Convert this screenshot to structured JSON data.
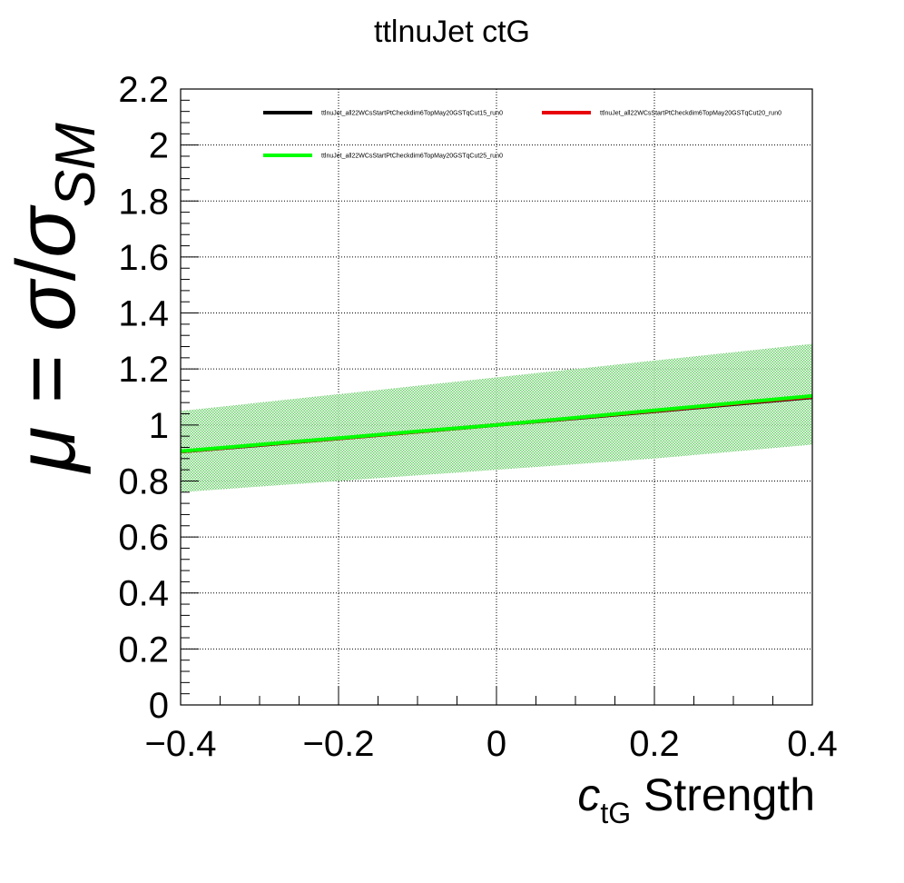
{
  "title": "ttlnuJet ctG",
  "xlabel": {
    "symbol": "c",
    "sub": "tG",
    "text": " Strength"
  },
  "ylabel": {
    "mu": "μ",
    "eq": " = ",
    "sigma": "σ",
    "slash": "/",
    "sigma2": "σ",
    "sub": "SM"
  },
  "colors": {
    "black": "#000000",
    "red": "#e8000b",
    "green": "#00ff00",
    "band": "#7ed87e"
  },
  "chart_data": {
    "type": "line",
    "title": "ttlnuJet ctG",
    "xlabel": "c_tG Strength",
    "ylabel": "μ = σ/σ_SM",
    "xlim": [
      -0.4,
      0.4
    ],
    "ylim": [
      0,
      2.2
    ],
    "grid": true,
    "legend_position": "top",
    "xticks": [
      "−0.4",
      "−0.2",
      "0",
      "0.2",
      "0.4"
    ],
    "yticks": [
      "0",
      "0.2",
      "0.4",
      "0.6",
      "0.8",
      "1",
      "1.2",
      "1.4",
      "1.6",
      "1.8",
      "2",
      "2.2"
    ],
    "x": [
      -0.4,
      -0.3,
      -0.2,
      -0.1,
      0.0,
      0.1,
      0.2,
      0.3,
      0.4
    ],
    "series": [
      {
        "name": "ttlnuJet_all22WCsStartPtCheckdim6TopMay20GSTqCut15_run0",
        "color": "#000000",
        "values": [
          0.905,
          0.928,
          0.952,
          0.976,
          1.0,
          1.024,
          1.049,
          1.074,
          1.099
        ]
      },
      {
        "name": "ttlnuJet_all22WCsStartPtCheckdim6TopMay20GSTqCut20_run0",
        "color": "#e8000b",
        "values": [
          0.905,
          0.929,
          0.952,
          0.976,
          1.0,
          1.025,
          1.05,
          1.076,
          1.101
        ]
      },
      {
        "name": "ttlnuJet_all22WCsStartPtCheckdim6TopMay20GSTqCut25_run0",
        "color": "#00ff00",
        "values": [
          0.906,
          0.93,
          0.953,
          0.977,
          1.0,
          1.026,
          1.052,
          1.078,
          1.104
        ],
        "band_upper": [
          1.05,
          1.08,
          1.11,
          1.14,
          1.17,
          1.2,
          1.23,
          1.26,
          1.29
        ],
        "band_lower": [
          0.76,
          0.78,
          0.8,
          0.82,
          0.84,
          0.86,
          0.88,
          0.905,
          0.93
        ]
      }
    ]
  }
}
